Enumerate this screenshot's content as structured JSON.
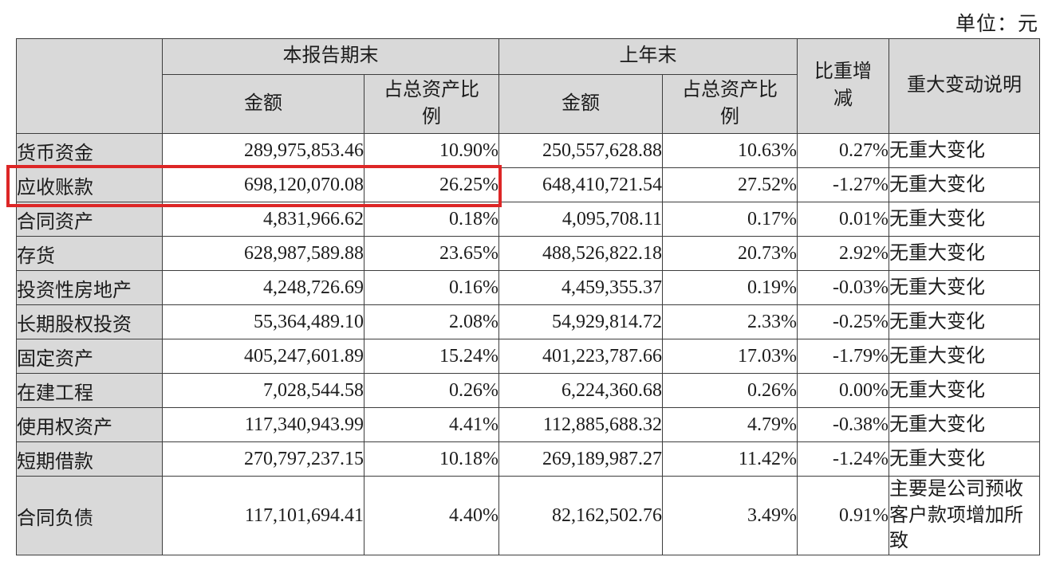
{
  "unit_label": "单位：元",
  "highlight": {
    "row_label": "应收账款",
    "color": "#dd2626"
  },
  "table": {
    "headers": {
      "current_period": "本报告期末",
      "prior_period": "上年末",
      "amount_current": "金额",
      "pct_current": "占总资产比例",
      "amount_prior": "金额",
      "pct_prior": "占总资产比例",
      "change_in_proportion": "比重增减",
      "major_change_note": "重大变动说明"
    },
    "rows": [
      {
        "label": "货币资金",
        "cur_amount": "289,975,853.46",
        "cur_pct": "10.90%",
        "prev_amount": "250,557,628.88",
        "prev_pct": "10.63%",
        "change": "0.27%",
        "note": "无重大变化"
      },
      {
        "label": "应收账款",
        "cur_amount": "698,120,070.08",
        "cur_pct": "26.25%",
        "prev_amount": "648,410,721.54",
        "prev_pct": "27.52%",
        "change": "-1.27%",
        "note": "无重大变化"
      },
      {
        "label": "合同资产",
        "cur_amount": "4,831,966.62",
        "cur_pct": "0.18%",
        "prev_amount": "4,095,708.11",
        "prev_pct": "0.17%",
        "change": "0.01%",
        "note": "无重大变化"
      },
      {
        "label": "存货",
        "cur_amount": "628,987,589.88",
        "cur_pct": "23.65%",
        "prev_amount": "488,526,822.18",
        "prev_pct": "20.73%",
        "change": "2.92%",
        "note": "无重大变化"
      },
      {
        "label": "投资性房地产",
        "cur_amount": "4,248,726.69",
        "cur_pct": "0.16%",
        "prev_amount": "4,459,355.37",
        "prev_pct": "0.19%",
        "change": "-0.03%",
        "note": "无重大变化"
      },
      {
        "label": "长期股权投资",
        "cur_amount": "55,364,489.10",
        "cur_pct": "2.08%",
        "prev_amount": "54,929,814.72",
        "prev_pct": "2.33%",
        "change": "-0.25%",
        "note": "无重大变化"
      },
      {
        "label": "固定资产",
        "cur_amount": "405,247,601.89",
        "cur_pct": "15.24%",
        "prev_amount": "401,223,787.66",
        "prev_pct": "17.03%",
        "change": "-1.79%",
        "note": "无重大变化"
      },
      {
        "label": "在建工程",
        "cur_amount": "7,028,544.58",
        "cur_pct": "0.26%",
        "prev_amount": "6,224,360.68",
        "prev_pct": "0.26%",
        "change": "0.00%",
        "note": "无重大变化"
      },
      {
        "label": "使用权资产",
        "cur_amount": "117,340,943.99",
        "cur_pct": "4.41%",
        "prev_amount": "112,885,688.32",
        "prev_pct": "4.79%",
        "change": "-0.38%",
        "note": "无重大变化"
      },
      {
        "label": "短期借款",
        "cur_amount": "270,797,237.15",
        "cur_pct": "10.18%",
        "prev_amount": "269,189,987.27",
        "prev_pct": "11.42%",
        "change": "-1.24%",
        "note": "无重大变化"
      },
      {
        "label": "合同负债",
        "cur_amount": "117,101,694.41",
        "cur_pct": "4.40%",
        "prev_amount": "82,162,502.76",
        "prev_pct": "3.49%",
        "change": "0.91%",
        "note": "主要是公司预收客户款项增加所致"
      }
    ]
  }
}
